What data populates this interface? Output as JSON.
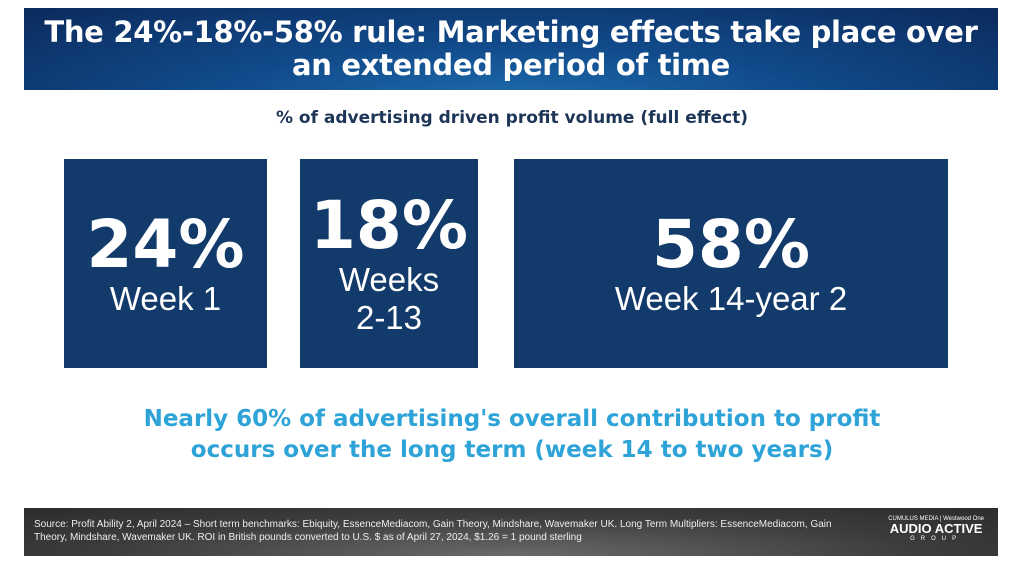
{
  "header": {
    "title": "The 24%-18%-58% rule: Marketing effects take place over an extended period of time"
  },
  "subtitle": "% of advertising driven profit volume (full effect)",
  "stats": [
    {
      "value": "24%",
      "label": "Week 1"
    },
    {
      "value": "18%",
      "label": "Weeks 2-13"
    },
    {
      "value": "58%",
      "label": "Week 14-year 2"
    }
  ],
  "colors": {
    "box": "#123b6c",
    "accent": "#2ea3d8",
    "header": "#114a8a"
  },
  "takeaway": "Nearly 60% of advertising's overall contribution to profit occurs over the long term (week 14 to two years)",
  "footer": {
    "source": "Source: Profit Ability 2, April 2024 – Short term benchmarks: Ebiquity, EssenceMediacom, Gain Theory, Mindshare, Wavemaker UK. Long Term Multipliers: EssenceMediacom, Gain Theory, Mindshare, Wavemaker UK. ROI in British pounds converted to U.S. $ as of April 27, 2024, $1.26 = 1 pound sterling",
    "logo": {
      "top": "CUMULUS MEDIA | Westwood One",
      "main": "AUDIO ACTIVE",
      "sub": "GROUP"
    }
  }
}
